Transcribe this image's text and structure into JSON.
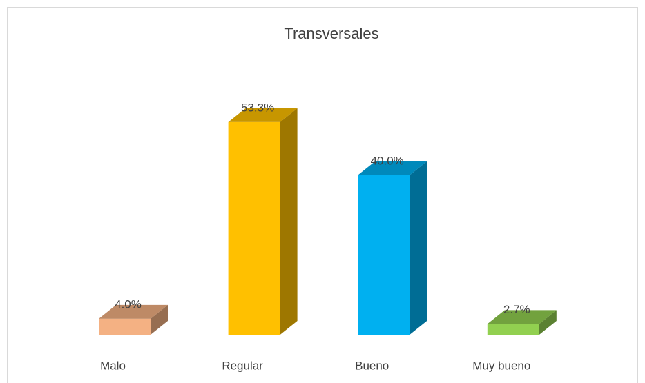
{
  "chart_data": {
    "type": "bar3d",
    "title": "Transversales",
    "categories": [
      "Malo",
      "Regular",
      "Bueno",
      "Muy bueno"
    ],
    "values": [
      4.0,
      53.3,
      40.0,
      2.7
    ],
    "value_labels": [
      "4.0%",
      "53.3%",
      "40.0%",
      "2.7%"
    ],
    "colors": [
      "#f4b183",
      "#ffc000",
      "#00b0f0",
      "#92d050"
    ]
  }
}
